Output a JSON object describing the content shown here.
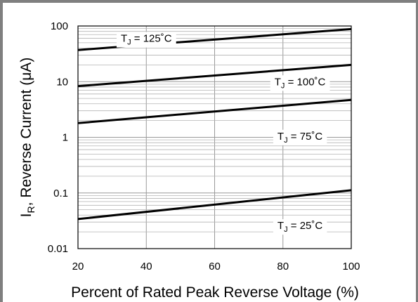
{
  "chart_data": {
    "type": "line",
    "title": "",
    "xlabel": "Percent of Rated Peak Reverse Voltage (%)",
    "ylabel": {
      "main": "I",
      "sub": "R",
      "rest": ", Reverse Current (μA)"
    },
    "xlim": [
      20,
      100
    ],
    "ylim": [
      0.01,
      100
    ],
    "yscale": "log",
    "grid": true,
    "xticks": [
      20,
      40,
      60,
      80,
      100
    ],
    "xtick_labels": [
      "20",
      "40",
      "60",
      "80",
      "100"
    ],
    "yticks": [
      0.01,
      0.1,
      1,
      10,
      100
    ],
    "ytick_labels": [
      "0.01",
      "0.1",
      "1",
      "10",
      "100"
    ],
    "series": [
      {
        "name": "T_J = 125°C",
        "x": [
          20,
          100
        ],
        "y": [
          37,
          88
        ]
      },
      {
        "name": "T_J = 100°C",
        "x": [
          20,
          100
        ],
        "y": [
          8.3,
          20
        ]
      },
      {
        "name": "T_J = 75°C",
        "x": [
          20,
          100
        ],
        "y": [
          1.8,
          4.7
        ]
      },
      {
        "name": "T_J = 25°C",
        "x": [
          20,
          100
        ],
        "y": [
          0.034,
          0.112
        ]
      }
    ],
    "annotations": [
      {
        "main": "T",
        "sub": "J",
        "rest": " = 125˚C",
        "x": 40,
        "y": 60
      },
      {
        "main": "T",
        "sub": "J",
        "rest": " = 100˚C",
        "x": 85,
        "y": 10
      },
      {
        "main": "T",
        "sub": "J",
        "rest": " = 75˚C",
        "x": 85,
        "y": 1.05
      },
      {
        "main": "T",
        "sub": "J",
        "rest": " = 25˚C",
        "x": 85,
        "y": 0.026
      }
    ],
    "line_color": "#000000",
    "grid_color": "#999999"
  }
}
